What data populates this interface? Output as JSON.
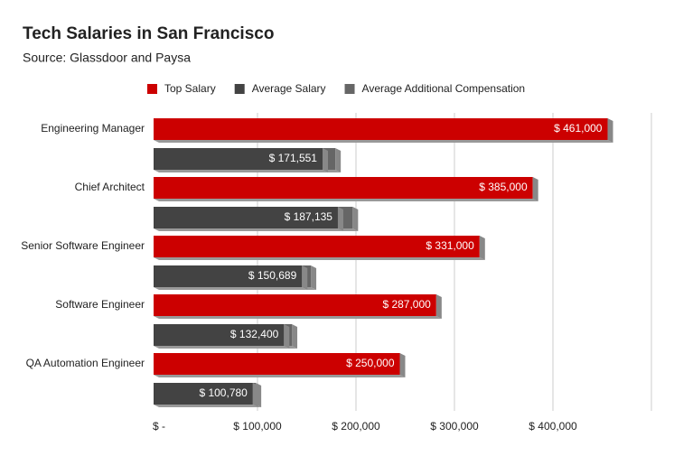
{
  "chart_data": {
    "type": "bar",
    "title": "Tech Salaries in San Francisco",
    "subtitle": "Source: Glassdoor and Paysa",
    "categories": [
      "Engineering Manager",
      "Chief Architect",
      "Senior Software Engineer",
      "Software Engineer",
      "QA Automation Engineer"
    ],
    "series": [
      {
        "name": "Top Salary",
        "color": "#cc0000",
        "values": [
          461000,
          385000,
          331000,
          287000,
          250000
        ],
        "value_labels": [
          "$ 461,000",
          "$ 385,000",
          "$ 331,000",
          "$ 287,000",
          "$ 250,000"
        ]
      },
      {
        "name": "Average Salary",
        "color": "#434343",
        "values": [
          171551,
          187135,
          150689,
          132400,
          100780
        ],
        "value_labels": [
          "$ 171,551",
          "$ 187,135",
          "$ 150,689",
          "$ 132,400",
          "$ 100,780"
        ]
      },
      {
        "name": "Average Additional Compensation",
        "color": "#666666",
        "values": [
          13000,
          15000,
          9000,
          8000,
          3000
        ]
      }
    ],
    "xlim": [
      0,
      500000
    ],
    "xticks": [
      {
        "value": 0,
        "label": "$ -"
      },
      {
        "value": 100000,
        "label": "$ 100,000"
      },
      {
        "value": 200000,
        "label": "$ 200,000"
      },
      {
        "value": 300000,
        "label": "$ 300,000"
      },
      {
        "value": 400000,
        "label": "$ 400,000"
      }
    ],
    "grid": true
  }
}
